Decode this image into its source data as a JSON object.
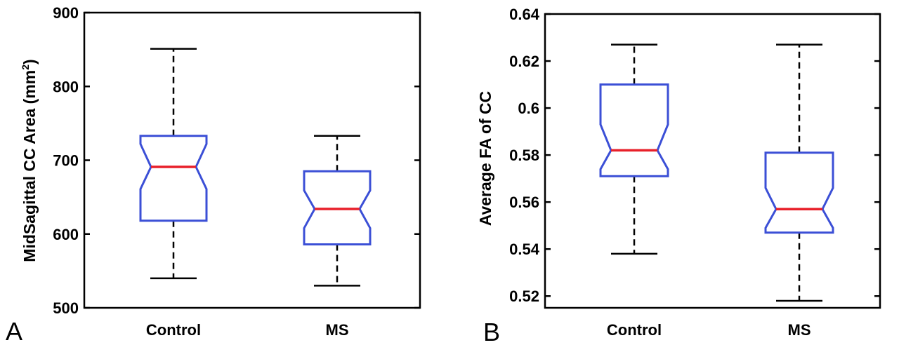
{
  "chart_data": [
    {
      "type": "box",
      "panel_label": "A",
      "ylabel_main": "MidSagittal CC Area (mm",
      "ylabel_sup": "2",
      "ylabel_close": ")",
      "ylim": [
        500,
        900
      ],
      "yticks": [
        500,
        600,
        700,
        800,
        900
      ],
      "ytick_labels": [
        "500",
        "600",
        "700",
        "800",
        "900"
      ],
      "categories": [
        "Control",
        "MS"
      ],
      "boxes": [
        {
          "whisker_low": 540,
          "q1": 618,
          "median": 691,
          "q3": 733,
          "whisker_high": 851,
          "notch_low": 661,
          "notch_high": 722
        },
        {
          "whisker_low": 530,
          "q1": 586,
          "median": 634,
          "q3": 685,
          "whisker_high": 733,
          "notch_low": 608,
          "notch_high": 659
        }
      ],
      "colors": {
        "box": "#3b4fd6",
        "median": "#e8202a",
        "whisker": "#000000"
      }
    },
    {
      "type": "box",
      "panel_label": "B",
      "ylabel_main": "Average FA of CC",
      "ylabel_sup": "",
      "ylabel_close": "",
      "ylim": [
        0.515,
        0.64
      ],
      "yticks": [
        0.52,
        0.54,
        0.56,
        0.58,
        0.6,
        0.62,
        0.64
      ],
      "ytick_labels": [
        "0.52",
        "0.54",
        "0.56",
        "0.58",
        "0.6",
        "0.62",
        "0.64"
      ],
      "categories": [
        "Control",
        "MS"
      ],
      "boxes": [
        {
          "whisker_low": 0.538,
          "q1": 0.571,
          "median": 0.582,
          "q3": 0.61,
          "whisker_high": 0.627,
          "notch_low": 0.574,
          "notch_high": 0.593
        },
        {
          "whisker_low": 0.518,
          "q1": 0.547,
          "median": 0.557,
          "q3": 0.581,
          "whisker_high": 0.627,
          "notch_low": 0.549,
          "notch_high": 0.566
        }
      ],
      "colors": {
        "box": "#3b4fd6",
        "median": "#e8202a",
        "whisker": "#000000"
      }
    }
  ]
}
